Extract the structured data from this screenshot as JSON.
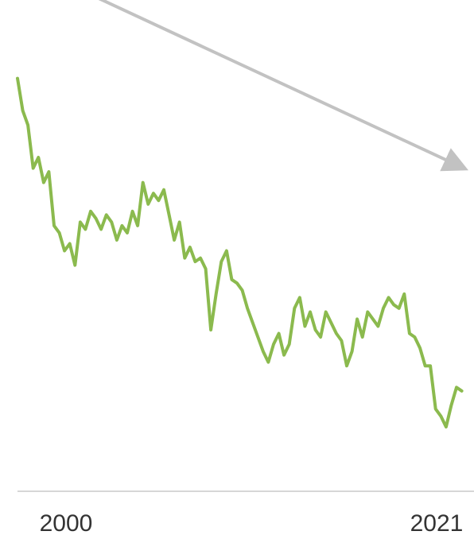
{
  "chart_data": {
    "type": "line",
    "title": "",
    "xlabel": "",
    "ylabel": "",
    "x_tick_labels": [
      "2000",
      "2021"
    ],
    "xlim": [
      2000,
      2021
    ],
    "ylim": [
      0,
      100
    ],
    "grid": false,
    "legend": "none",
    "y_axis_visible": false,
    "x_axis_line": true,
    "series": [
      {
        "x": [
          2000.0,
          2000.25,
          2000.5,
          2000.75,
          2001.0,
          2001.25,
          2001.5,
          2001.75,
          2002.0,
          2002.25,
          2002.5,
          2002.75,
          2003.0,
          2003.25,
          2003.5,
          2003.75,
          2004.0,
          2004.25,
          2004.5,
          2004.75,
          2005.0,
          2005.25,
          2005.5,
          2005.75,
          2006.0,
          2006.25,
          2006.5,
          2006.75,
          2007.0,
          2007.25,
          2007.5,
          2007.75,
          2008.0,
          2008.25,
          2008.5,
          2008.75,
          2009.0,
          2009.25,
          2009.5,
          2009.75,
          2010.0,
          2010.25,
          2010.5,
          2010.75,
          2011.0,
          2011.25,
          2011.5,
          2011.75,
          2012.0,
          2012.25,
          2012.5,
          2012.75,
          2013.0,
          2013.25,
          2013.5,
          2013.75,
          2014.0,
          2014.25,
          2014.5,
          2014.75,
          2015.0,
          2015.25,
          2015.5,
          2015.75,
          2016.0,
          2016.25,
          2016.5,
          2016.75,
          2017.0,
          2017.25,
          2017.5,
          2017.75,
          2018.0,
          2018.25,
          2018.5,
          2018.75,
          2019.0,
          2019.25,
          2019.5,
          2019.75,
          2020.0,
          2020.25,
          2020.5,
          2020.75,
          2021.0,
          2021.25
        ],
        "values": [
          97,
          88,
          84,
          72,
          75,
          68,
          71,
          56,
          54,
          49,
          51,
          45,
          57,
          55,
          60,
          58,
          55,
          59,
          57,
          52,
          56,
          54,
          60,
          56,
          68,
          62,
          65,
          63,
          66,
          59,
          52,
          57,
          47,
          50,
          46,
          47,
          44,
          27,
          37,
          46,
          49,
          41,
          40,
          38,
          33,
          29,
          25,
          21,
          18,
          23,
          26,
          20,
          23,
          33,
          36,
          28,
          32,
          27,
          25,
          32,
          29,
          26,
          24,
          17,
          21,
          30,
          25,
          32,
          30,
          28,
          33,
          36,
          34,
          33,
          37,
          26,
          25,
          22,
          17,
          17,
          5,
          3,
          0,
          6,
          11,
          10
        ]
      }
    ],
    "colors": {
      "line": "#8bba4e",
      "arrow": "#c2c2c2",
      "axis": "#d6d6d6",
      "tick_text": "#333333"
    },
    "annotations": [
      {
        "type": "trend-arrow",
        "direction": "down",
        "from": [
          2002.5,
          123
        ],
        "to": [
          2021.35,
          72
        ]
      }
    ]
  }
}
